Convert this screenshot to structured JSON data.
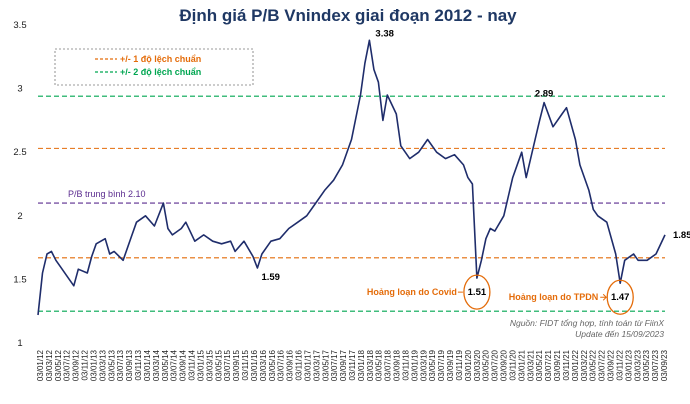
{
  "chart_data": {
    "type": "line",
    "title": "Định giá P/B Vnindex giai đoạn 2012 - nay",
    "xlabel": "",
    "ylabel": "",
    "ylim": [
      1,
      3.5
    ],
    "yticks": [
      "1",
      "1.5",
      "2",
      "2.5",
      "3",
      "3.5"
    ],
    "x_tick_labels": [
      "03/01/12",
      "03/03/12",
      "03/05/12",
      "03/07/12",
      "03/09/12",
      "03/11/12",
      "03/01/13",
      "03/03/13",
      "03/05/13",
      "03/07/13",
      "03/09/13",
      "03/11/13",
      "03/01/14",
      "03/03/14",
      "03/05/14",
      "03/07/14",
      "03/09/14",
      "03/11/14",
      "03/01/15",
      "03/03/15",
      "03/05/15",
      "03/07/15",
      "03/09/15",
      "03/11/15",
      "03/01/16",
      "03/03/16",
      "03/05/16",
      "03/07/16",
      "03/09/16",
      "03/11/16",
      "03/01/17",
      "03/03/17",
      "03/05/17",
      "03/07/17",
      "03/09/17",
      "03/11/17",
      "03/01/18",
      "03/03/18",
      "03/05/18",
      "03/07/18",
      "03/09/18",
      "03/11/18",
      "03/01/19",
      "03/03/19",
      "03/05/19",
      "03/07/19",
      "03/09/19",
      "03/11/19",
      "03/01/20",
      "03/03/20",
      "03/05/20",
      "03/07/20",
      "03/09/20",
      "03/11/20",
      "03/01/21",
      "03/03/21",
      "03/05/21",
      "03/07/21",
      "03/09/21",
      "03/11/21",
      "03/01/22",
      "03/03/22",
      "03/05/22",
      "03/07/22",
      "03/09/22",
      "03/11/22",
      "03/01/23",
      "03/03/23",
      "03/05/23",
      "03/07/23",
      "03/09/23"
    ],
    "series": [
      {
        "color": "#1f2d6b",
        "x": [
          "2012-01",
          "2012-02",
          "2012-03",
          "2012-04",
          "2012-05",
          "2012-06",
          "2012-08",
          "2012-09",
          "2012-10",
          "2012-12",
          "2013-01",
          "2013-02",
          "2013-04",
          "2013-05",
          "2013-06",
          "2013-08",
          "2013-10",
          "2013-11",
          "2014-01",
          "2014-03",
          "2014-05",
          "2014-06",
          "2014-07",
          "2014-09",
          "2014-10",
          "2014-12",
          "2015-02",
          "2015-04",
          "2015-06",
          "2015-08",
          "2015-09",
          "2015-11",
          "2016-01",
          "2016-02",
          "2016-03",
          "2016-05",
          "2016-07",
          "2016-09",
          "2016-11",
          "2017-01",
          "2017-03",
          "2017-05",
          "2017-07",
          "2017-09",
          "2017-11",
          "2018-01",
          "2018-02",
          "2018-03",
          "2018-04",
          "2018-05",
          "2018-06",
          "2018-07",
          "2018-09",
          "2018-10",
          "2018-12",
          "2019-02",
          "2019-04",
          "2019-06",
          "2019-08",
          "2019-10",
          "2019-12",
          "2020-01",
          "2020-02",
          "2020-03",
          "2020-04",
          "2020-05",
          "2020-06",
          "2020-07",
          "2020-09",
          "2020-11",
          "2021-01",
          "2021-02",
          "2021-04",
          "2021-05",
          "2021-06",
          "2021-08",
          "2021-10",
          "2021-11",
          "2022-01",
          "2022-02",
          "2022-04",
          "2022-05",
          "2022-06",
          "2022-08",
          "2022-10",
          "2022-11",
          "2022-12",
          "2023-02",
          "2023-03",
          "2023-05",
          "2023-07",
          "2023-09"
        ],
        "values": [
          1.22,
          1.55,
          1.7,
          1.72,
          1.65,
          1.6,
          1.5,
          1.45,
          1.58,
          1.55,
          1.68,
          1.78,
          1.82,
          1.7,
          1.72,
          1.65,
          1.85,
          1.95,
          2.0,
          1.92,
          2.1,
          1.9,
          1.85,
          1.9,
          1.95,
          1.8,
          1.85,
          1.8,
          1.78,
          1.8,
          1.72,
          1.8,
          1.68,
          1.59,
          1.7,
          1.8,
          1.82,
          1.9,
          1.95,
          2.0,
          2.1,
          2.2,
          2.28,
          2.4,
          2.6,
          2.95,
          3.2,
          3.38,
          3.15,
          3.05,
          2.75,
          2.95,
          2.8,
          2.55,
          2.45,
          2.5,
          2.6,
          2.5,
          2.45,
          2.48,
          2.4,
          2.3,
          2.25,
          1.51,
          1.65,
          1.82,
          1.9,
          1.88,
          2.0,
          2.3,
          2.5,
          2.3,
          2.6,
          2.75,
          2.89,
          2.7,
          2.8,
          2.85,
          2.6,
          2.4,
          2.2,
          2.05,
          2.0,
          1.95,
          1.7,
          1.47,
          1.65,
          1.7,
          1.65,
          1.65,
          1.7,
          1.85
        ]
      }
    ],
    "reference_lines": [
      {
        "label": "P/B trung bình 2.10",
        "value": 2.1,
        "color": "#5b2c8f"
      },
      {
        "value": 2.53,
        "color": "#e46c0a"
      },
      {
        "value": 1.67,
        "color": "#e46c0a"
      },
      {
        "value": 2.94,
        "color": "#00a651"
      },
      {
        "value": 1.25,
        "color": "#00a651"
      }
    ],
    "legend": {
      "position": "top-left",
      "entries": [
        {
          "label": "+/- 1 độ lệch chuẩn",
          "color": "#e46c0a"
        },
        {
          "label": "+/- 2 độ lệch chuẩn",
          "color": "#00a651"
        }
      ]
    },
    "annotations": [
      {
        "text": "3.38",
        "x": "2018-03",
        "y": 3.38
      },
      {
        "text": "1.59",
        "x": "2016-02",
        "y": 1.59
      },
      {
        "text": "2.89",
        "x": "2021-06",
        "y": 2.89
      },
      {
        "text": "1.85",
        "x": "2023-09",
        "y": 1.85
      },
      {
        "text": "1.51",
        "x": "2020-03",
        "y": 1.51,
        "circled": true
      },
      {
        "text": "1.47",
        "x": "2022-11",
        "y": 1.47,
        "circled": true
      },
      {
        "text": "Hoảng loạn do Covid",
        "color": "#e46c0a"
      },
      {
        "text": "Hoảng loạn do TPDN",
        "color": "#e46c0a"
      }
    ],
    "source_note": [
      "Nguồn: FIDT tổng hợp, tính toán từ FiinX",
      "Update đến 15/09/2023"
    ],
    "grid": false
  }
}
